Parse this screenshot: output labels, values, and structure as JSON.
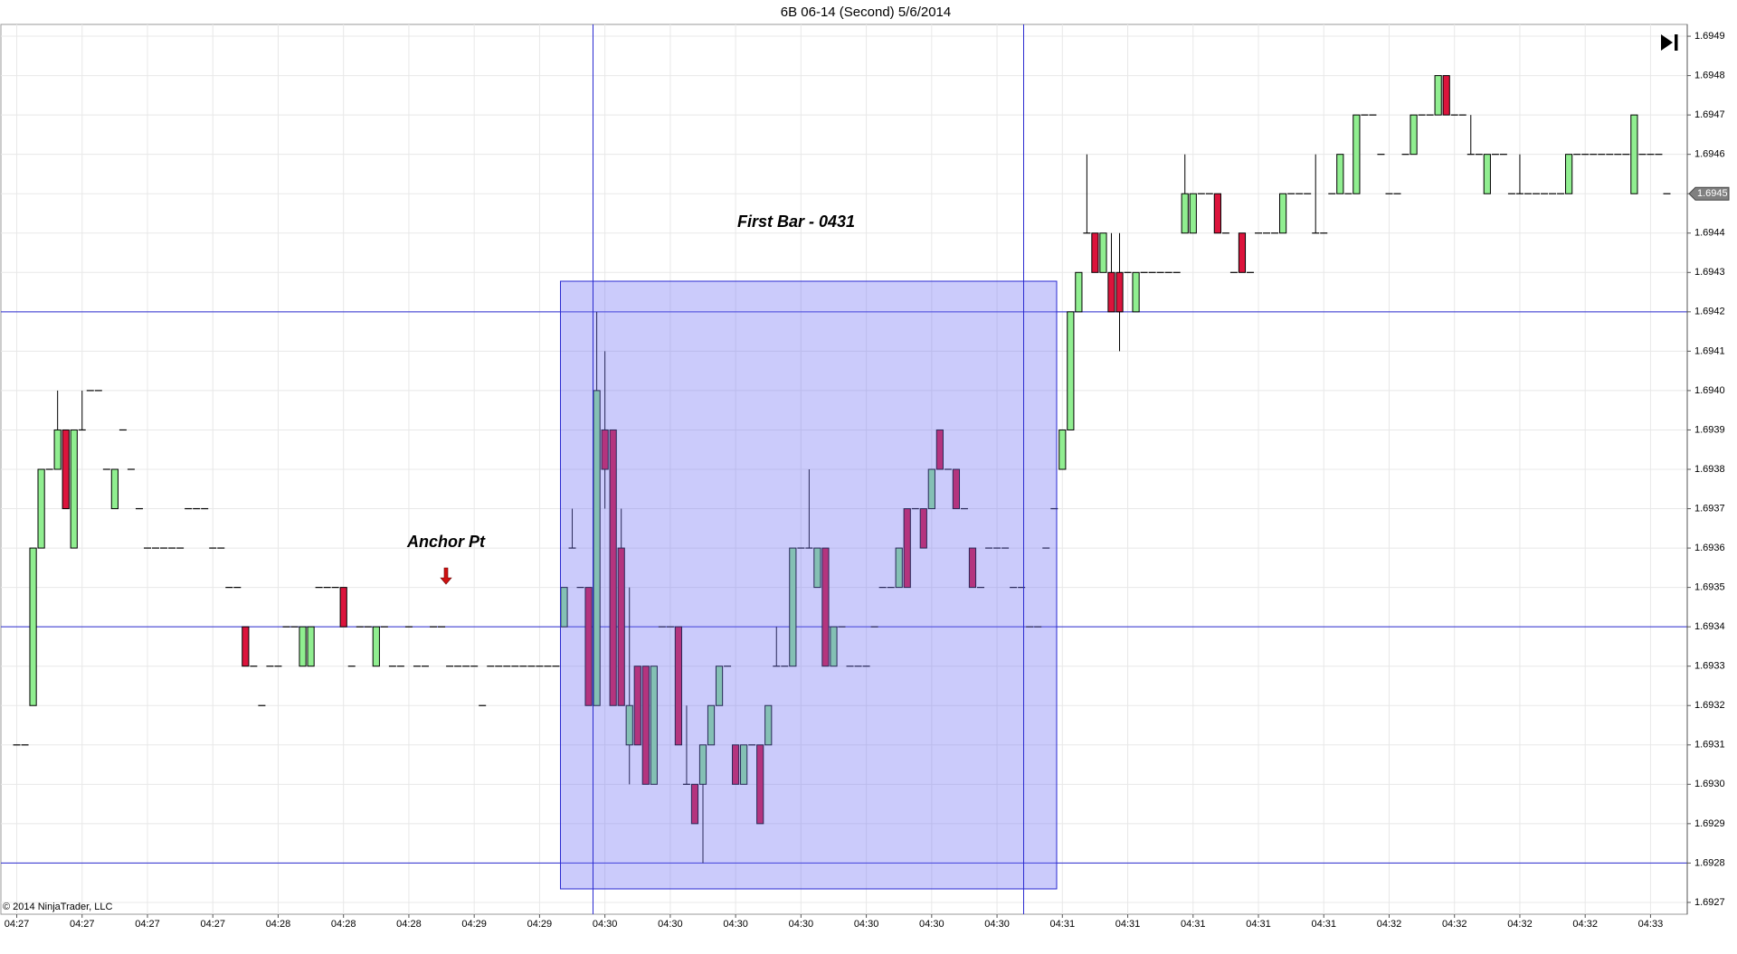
{
  "chart_data": {
    "type": "candlestick",
    "title": "6B 06-14 (Second)  5/6/2014",
    "annotations": [
      "First Bar - 0431",
      "Anchor Pt"
    ],
    "copyright": "© 2014 NinjaTrader, LLC",
    "categories": [
      "04:27",
      null,
      null,
      null,
      null,
      null,
      null,
      null,
      "04:27",
      null,
      null,
      null,
      null,
      null,
      null,
      null,
      "04:27",
      null,
      null,
      null,
      null,
      null,
      null,
      null,
      "04:27",
      null,
      null,
      null,
      null,
      null,
      null,
      null,
      "04:28",
      null,
      null,
      null,
      null,
      null,
      null,
      null,
      "04:28",
      null,
      null,
      null,
      null,
      null,
      null,
      null,
      "04:28",
      null,
      null,
      null,
      null,
      null,
      null,
      null,
      "04:29",
      null,
      null,
      null,
      null,
      null,
      null,
      null,
      "04:29",
      null,
      null,
      null,
      null,
      null,
      null,
      null,
      "04:30",
      null,
      null,
      null,
      null,
      null,
      null,
      null,
      "04:30",
      null,
      null,
      null,
      null,
      null,
      null,
      null,
      "04:30",
      null,
      null,
      null,
      null,
      null,
      null,
      null,
      "04:30",
      null,
      null,
      null,
      null,
      null,
      null,
      null,
      "04:30",
      null,
      null,
      null,
      null,
      null,
      null,
      null,
      "04:30",
      null,
      null,
      null,
      null,
      null,
      null,
      null,
      "04:30",
      null,
      null,
      null,
      null,
      null,
      null,
      null,
      "04:31",
      null,
      null,
      null,
      null,
      null,
      null,
      null,
      "04:31",
      null,
      null,
      null,
      null,
      null,
      null,
      null,
      "04:31",
      null,
      null,
      null,
      null,
      null,
      null,
      null,
      "04:31",
      null,
      null,
      null,
      null,
      null,
      null,
      null,
      "04:31",
      null,
      null,
      null,
      null,
      null,
      null,
      null,
      "04:32",
      null,
      null,
      null,
      null,
      null,
      null,
      null,
      "04:32",
      null,
      null,
      null,
      null,
      null,
      null,
      null,
      "04:32",
      null,
      null,
      null,
      null,
      null,
      null,
      null,
      "04:32",
      null,
      null,
      null,
      null,
      null,
      null,
      null,
      "04:33",
      null,
      null
    ],
    "open": [
      1.6931,
      1.6931,
      1.6932,
      1.6936,
      1.6938,
      1.6938,
      1.6939,
      1.6936,
      1.6939,
      1.694,
      1.694,
      1.6938,
      1.6937,
      1.6939,
      1.6938,
      1.6937,
      1.6936,
      1.6936,
      1.6936,
      1.6936,
      1.6936,
      1.6937,
      1.6937,
      1.6937,
      1.6936,
      1.6936,
      1.6935,
      1.6935,
      1.6934,
      1.6933,
      1.6932,
      1.6933,
      1.6933,
      1.6934,
      1.6934,
      1.6933,
      1.6933,
      1.6935,
      1.6935,
      1.6935,
      1.6935,
      1.6933,
      1.6934,
      1.6934,
      1.6933,
      1.6934,
      1.6933,
      1.6933,
      1.6934,
      1.6933,
      1.6933,
      1.6934,
      1.6934,
      1.6933,
      1.6933,
      1.6933,
      1.6933,
      1.6932,
      1.6933,
      1.6933,
      1.6933,
      1.6933,
      1.6933,
      1.6933,
      1.6933,
      1.6933,
      1.6933,
      1.6934,
      1.6936,
      1.6935,
      1.6935,
      1.6932,
      1.6939,
      1.6939,
      1.6936,
      1.6931,
      1.6933,
      1.6933,
      1.693,
      1.6934,
      1.6934,
      1.6934,
      1.693,
      1.693,
      1.693,
      1.6931,
      1.6932,
      1.6933,
      1.6931,
      1.693,
      1.6931,
      1.6931,
      1.6931,
      1.6933,
      1.6933,
      1.6933,
      1.6936,
      1.6936,
      1.6935,
      1.6936,
      1.6933,
      1.6934,
      1.6933,
      1.6933,
      1.6933,
      1.6934,
      1.6935,
      1.6935,
      1.6935,
      1.6937,
      1.6937,
      1.6937,
      1.6937,
      1.6939,
      1.6938,
      1.6938,
      1.6937,
      1.6936,
      1.6935,
      1.6936,
      1.6936,
      1.6936,
      1.6935,
      1.6935,
      1.6934,
      1.6934,
      1.6936,
      1.6937,
      1.6938,
      1.6939,
      1.6942,
      1.6944,
      1.6944,
      1.6943,
      1.6943,
      1.6943,
      1.6943,
      1.6942,
      1.6943,
      1.6943,
      1.6943,
      1.6943,
      1.6943,
      1.6944,
      1.6944,
      1.6945,
      1.6945,
      1.6945,
      1.6944,
      1.6943,
      1.6944,
      1.6943,
      1.6944,
      1.6944,
      1.6944,
      1.6944,
      1.6945,
      1.6945,
      1.6945,
      1.6944,
      1.6944,
      1.6945,
      1.6945,
      1.6945,
      1.6945,
      1.6947,
      1.6947,
      1.6946,
      1.6945,
      1.6945,
      1.6946,
      1.6946,
      1.6947,
      1.6947,
      1.6947,
      1.6948,
      1.6947,
      1.6947,
      1.6946,
      1.6946,
      1.6945,
      1.6946,
      1.6946,
      1.6945,
      1.6945,
      1.6945,
      1.6945,
      1.6945,
      1.6945,
      1.6945,
      1.6945,
      1.6946,
      1.6946,
      1.6946,
      1.6946,
      1.6946,
      1.6946,
      1.6946,
      1.6945,
      1.6946,
      1.6946,
      1.6946,
      1.6945
    ],
    "high": [
      1.6931,
      1.6931,
      1.6936,
      1.6938,
      1.6938,
      1.694,
      1.6939,
      1.6939,
      1.694,
      1.694,
      1.694,
      1.6938,
      1.6938,
      1.6939,
      1.6938,
      1.6937,
      1.6936,
      1.6936,
      1.6936,
      1.6936,
      1.6936,
      1.6937,
      1.6937,
      1.6937,
      1.6936,
      1.6936,
      1.6935,
      1.6935,
      1.6934,
      1.6933,
      1.6932,
      1.6933,
      1.6933,
      1.6934,
      1.6934,
      1.6934,
      1.6934,
      1.6935,
      1.6935,
      1.6935,
      1.6935,
      1.6933,
      1.6934,
      1.6934,
      1.6934,
      1.6934,
      1.6933,
      1.6933,
      1.6934,
      1.6933,
      1.6933,
      1.6934,
      1.6934,
      1.6933,
      1.6933,
      1.6933,
      1.6933,
      1.6932,
      1.6933,
      1.6933,
      1.6933,
      1.6933,
      1.6933,
      1.6933,
      1.6933,
      1.6933,
      1.6933,
      1.6935,
      1.6937,
      1.6935,
      1.6935,
      1.6942,
      1.6941,
      1.6939,
      1.6937,
      1.6935,
      1.6933,
      1.6933,
      1.6933,
      1.6934,
      1.6934,
      1.6934,
      1.6932,
      1.693,
      1.6931,
      1.6932,
      1.6933,
      1.6933,
      1.6931,
      1.6931,
      1.6931,
      1.6931,
      1.6932,
      1.6934,
      1.6933,
      1.6936,
      1.6936,
      1.6938,
      1.6936,
      1.6936,
      1.6934,
      1.6934,
      1.6933,
      1.6933,
      1.6933,
      1.6934,
      1.6935,
      1.6935,
      1.6936,
      1.6937,
      1.6937,
      1.6937,
      1.6938,
      1.6939,
      1.6938,
      1.6938,
      1.6937,
      1.6936,
      1.6935,
      1.6936,
      1.6936,
      1.6936,
      1.6935,
      1.6935,
      1.6934,
      1.6934,
      1.6936,
      1.6937,
      1.6939,
      1.6942,
      1.6943,
      1.6946,
      1.6944,
      1.6944,
      1.6944,
      1.6944,
      1.6943,
      1.6943,
      1.6943,
      1.6943,
      1.6943,
      1.6943,
      1.6943,
      1.6946,
      1.6945,
      1.6945,
      1.6945,
      1.6945,
      1.6944,
      1.6943,
      1.6944,
      1.6943,
      1.6944,
      1.6944,
      1.6944,
      1.6945,
      1.6945,
      1.6945,
      1.6945,
      1.6946,
      1.6944,
      1.6945,
      1.6946,
      1.6945,
      1.6947,
      1.6947,
      1.6947,
      1.6946,
      1.6945,
      1.6945,
      1.6946,
      1.6947,
      1.6947,
      1.6947,
      1.6948,
      1.6948,
      1.6947,
      1.6947,
      1.6947,
      1.6946,
      1.6946,
      1.6946,
      1.6946,
      1.6945,
      1.6946,
      1.6945,
      1.6945,
      1.6945,
      1.6945,
      1.6945,
      1.6946,
      1.6946,
      1.6946,
      1.6946,
      1.6946,
      1.6946,
      1.6946,
      1.6946,
      1.6947,
      1.6946,
      1.6946,
      1.6946,
      1.6945
    ],
    "low": [
      1.6931,
      1.6931,
      1.6932,
      1.6936,
      1.6938,
      1.6938,
      1.6937,
      1.6936,
      1.6939,
      1.694,
      1.694,
      1.6938,
      1.6937,
      1.6939,
      1.6938,
      1.6937,
      1.6936,
      1.6936,
      1.6936,
      1.6936,
      1.6936,
      1.6937,
      1.6937,
      1.6937,
      1.6936,
      1.6936,
      1.6935,
      1.6935,
      1.6933,
      1.6933,
      1.6932,
      1.6933,
      1.6933,
      1.6934,
      1.6934,
      1.6933,
      1.6933,
      1.6935,
      1.6935,
      1.6935,
      1.6934,
      1.6933,
      1.6934,
      1.6934,
      1.6933,
      1.6934,
      1.6933,
      1.6933,
      1.6934,
      1.6933,
      1.6933,
      1.6934,
      1.6934,
      1.6933,
      1.6933,
      1.6933,
      1.6933,
      1.6932,
      1.6933,
      1.6933,
      1.6933,
      1.6933,
      1.6933,
      1.6933,
      1.6933,
      1.6933,
      1.6933,
      1.6934,
      1.6936,
      1.6935,
      1.6932,
      1.6932,
      1.6937,
      1.6932,
      1.6932,
      1.693,
      1.6931,
      1.693,
      1.693,
      1.6934,
      1.6934,
      1.6931,
      1.693,
      1.6929,
      1.6928,
      1.6931,
      1.6932,
      1.6933,
      1.693,
      1.693,
      1.6931,
      1.6929,
      1.6931,
      1.6933,
      1.6933,
      1.6933,
      1.6936,
      1.6936,
      1.6935,
      1.6933,
      1.6933,
      1.6934,
      1.6933,
      1.6933,
      1.6933,
      1.6934,
      1.6935,
      1.6935,
      1.6935,
      1.6935,
      1.6937,
      1.6936,
      1.6937,
      1.6938,
      1.6938,
      1.6937,
      1.6937,
      1.6935,
      1.6935,
      1.6936,
      1.6936,
      1.6936,
      1.6935,
      1.6935,
      1.6934,
      1.6934,
      1.6936,
      1.6937,
      1.6938,
      1.6939,
      1.6942,
      1.6944,
      1.6943,
      1.6943,
      1.6942,
      1.6941,
      1.6943,
      1.6942,
      1.6943,
      1.6943,
      1.6943,
      1.6943,
      1.6943,
      1.6944,
      1.6944,
      1.6945,
      1.6945,
      1.6944,
      1.6944,
      1.6943,
      1.6943,
      1.6943,
      1.6944,
      1.6944,
      1.6944,
      1.6944,
      1.6945,
      1.6945,
      1.6945,
      1.6944,
      1.6944,
      1.6945,
      1.6945,
      1.6945,
      1.6945,
      1.6947,
      1.6947,
      1.6946,
      1.6945,
      1.6945,
      1.6946,
      1.6946,
      1.6947,
      1.6947,
      1.6947,
      1.6947,
      1.6947,
      1.6947,
      1.6946,
      1.6946,
      1.6945,
      1.6946,
      1.6946,
      1.6945,
      1.6945,
      1.6945,
      1.6945,
      1.6945,
      1.6945,
      1.6945,
      1.6945,
      1.6946,
      1.6946,
      1.6946,
      1.6946,
      1.6946,
      1.6946,
      1.6946,
      1.6945,
      1.6946,
      1.6946,
      1.6946,
      1.6945
    ],
    "close": [
      1.6931,
      1.6931,
      1.6936,
      1.6938,
      1.6938,
      1.6939,
      1.6937,
      1.6939,
      1.6939,
      1.694,
      1.694,
      1.6938,
      1.6938,
      1.6939,
      1.6938,
      1.6937,
      1.6936,
      1.6936,
      1.6936,
      1.6936,
      1.6936,
      1.6937,
      1.6937,
      1.6937,
      1.6936,
      1.6936,
      1.6935,
      1.6935,
      1.6933,
      1.6933,
      1.6932,
      1.6933,
      1.6933,
      1.6934,
      1.6934,
      1.6934,
      1.6934,
      1.6935,
      1.6935,
      1.6935,
      1.6934,
      1.6933,
      1.6934,
      1.6934,
      1.6934,
      1.6934,
      1.6933,
      1.6933,
      1.6934,
      1.6933,
      1.6933,
      1.6934,
      1.6934,
      1.6933,
      1.6933,
      1.6933,
      1.6933,
      1.6932,
      1.6933,
      1.6933,
      1.6933,
      1.6933,
      1.6933,
      1.6933,
      1.6933,
      1.6933,
      1.6933,
      1.6935,
      1.6936,
      1.6935,
      1.6932,
      1.694,
      1.6938,
      1.6932,
      1.6932,
      1.6932,
      1.6931,
      1.693,
      1.6933,
      1.6934,
      1.6934,
      1.6931,
      1.693,
      1.6929,
      1.6931,
      1.6932,
      1.6933,
      1.6933,
      1.693,
      1.6931,
      1.6931,
      1.6929,
      1.6932,
      1.6933,
      1.6933,
      1.6936,
      1.6936,
      1.6936,
      1.6936,
      1.6933,
      1.6934,
      1.6934,
      1.6933,
      1.6933,
      1.6933,
      1.6934,
      1.6935,
      1.6935,
      1.6936,
      1.6935,
      1.6937,
      1.6936,
      1.6938,
      1.6938,
      1.6938,
      1.6937,
      1.6937,
      1.6935,
      1.6935,
      1.6936,
      1.6936,
      1.6936,
      1.6935,
      1.6935,
      1.6934,
      1.6934,
      1.6936,
      1.6937,
      1.6939,
      1.6942,
      1.6943,
      1.6944,
      1.6943,
      1.6944,
      1.6942,
      1.6942,
      1.6943,
      1.6943,
      1.6943,
      1.6943,
      1.6943,
      1.6943,
      1.6943,
      1.6945,
      1.6945,
      1.6945,
      1.6945,
      1.6944,
      1.6944,
      1.6943,
      1.6943,
      1.6943,
      1.6944,
      1.6944,
      1.6944,
      1.6945,
      1.6945,
      1.6945,
      1.6945,
      1.6944,
      1.6944,
      1.6945,
      1.6946,
      1.6945,
      1.6947,
      1.6947,
      1.6947,
      1.6946,
      1.6945,
      1.6945,
      1.6946,
      1.6947,
      1.6947,
      1.6947,
      1.6948,
      1.6947,
      1.6947,
      1.6947,
      1.6946,
      1.6946,
      1.6946,
      1.6946,
      1.6946,
      1.6945,
      1.6945,
      1.6945,
      1.6945,
      1.6945,
      1.6945,
      1.6945,
      1.6946,
      1.6946,
      1.6946,
      1.6946,
      1.6946,
      1.6946,
      1.6946,
      1.6946,
      1.6947,
      1.6946,
      1.6946,
      1.6946,
      1.6945
    ],
    "up_color": "#90ee90",
    "down_color": "#dc143c",
    "reference_lines": [
      1.6942,
      1.6934,
      1.6928
    ],
    "reference_color": "#2a2ad0",
    "last_price": 1.6945,
    "ylim": [
      1.69267,
      1.69493
    ],
    "yticks": [
      1.6927,
      1.6928,
      1.6929,
      {
        "value": 1.693,
        "label": "1.6930"
      },
      1.6931,
      1.6932,
      1.6933,
      1.6934,
      1.6935,
      1.6936,
      1.6937,
      1.6938,
      1.6939,
      {
        "value": 1.694,
        "label": "1.6940"
      },
      1.6941,
      1.6942,
      1.6943,
      1.6944,
      1.6945,
      1.6946,
      1.6947,
      1.6948,
      1.6949
    ],
    "grid": true
  }
}
